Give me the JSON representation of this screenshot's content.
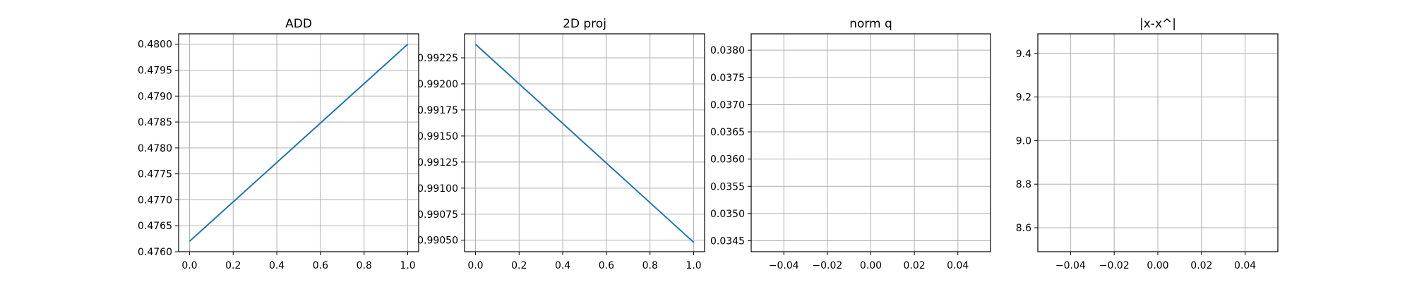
{
  "chart_data": [
    {
      "type": "line",
      "title": "ADD",
      "xlabel": "",
      "ylabel": "",
      "xlim": [
        -0.05,
        1.05
      ],
      "ylim": [
        0.476,
        0.4802
      ],
      "xticks": [
        0.0,
        0.2,
        0.4,
        0.6,
        0.8,
        1.0
      ],
      "xtick_labels": [
        "0.0",
        "0.2",
        "0.4",
        "0.6",
        "0.8",
        "1.0"
      ],
      "yticks": [
        0.476,
        0.4765,
        0.477,
        0.4775,
        0.478,
        0.4785,
        0.479,
        0.4795,
        0.48
      ],
      "ytick_labels": [
        "0.4760",
        "0.4765",
        "0.4770",
        "0.4775",
        "0.4780",
        "0.4785",
        "0.4790",
        "0.4795",
        "0.4800"
      ],
      "grid": true,
      "series": [
        {
          "x": [
            0,
            1
          ],
          "y": [
            0.4762,
            0.48
          ],
          "color": "#1f77b4"
        }
      ]
    },
    {
      "type": "line",
      "title": "2D proj",
      "xlabel": "",
      "ylabel": "",
      "xlim": [
        -0.05,
        1.05
      ],
      "ylim": [
        0.99039,
        0.99248
      ],
      "xticks": [
        0.0,
        0.2,
        0.4,
        0.6,
        0.8,
        1.0
      ],
      "xtick_labels": [
        "0.0",
        "0.2",
        "0.4",
        "0.6",
        "0.8",
        "1.0"
      ],
      "yticks": [
        0.9905,
        0.99075,
        0.991,
        0.99125,
        0.9915,
        0.99175,
        0.992,
        0.99225
      ],
      "ytick_labels": [
        "0.99050",
        "0.99075",
        "0.99100",
        "0.99125",
        "0.99150",
        "0.99175",
        "0.99200",
        "0.99225"
      ],
      "grid": true,
      "series": [
        {
          "x": [
            0,
            1
          ],
          "y": [
            0.99238,
            0.99048
          ],
          "color": "#1f77b4"
        }
      ]
    },
    {
      "type": "line",
      "title": "norm q",
      "xlabel": "",
      "ylabel": "",
      "xlim": [
        -0.055,
        0.055
      ],
      "ylim": [
        0.0343,
        0.0383
      ],
      "xticks": [
        -0.04,
        -0.02,
        0.0,
        0.02,
        0.04
      ],
      "xtick_labels": [
        "−0.04",
        "−0.02",
        "0.00",
        "0.02",
        "0.04"
      ],
      "yticks": [
        0.0345,
        0.035,
        0.0355,
        0.036,
        0.0365,
        0.037,
        0.0375,
        0.038
      ],
      "ytick_labels": [
        "0.0345",
        "0.0350",
        "0.0355",
        "0.0360",
        "0.0365",
        "0.0370",
        "0.0375",
        "0.0380"
      ],
      "grid": true,
      "series": []
    },
    {
      "type": "line",
      "title": "|x-x^|",
      "xlabel": "",
      "ylabel": "",
      "xlim": [
        -0.055,
        0.055
      ],
      "ylim": [
        8.49,
        9.49
      ],
      "xticks": [
        -0.04,
        -0.02,
        0.0,
        0.02,
        0.04
      ],
      "xtick_labels": [
        "−0.04",
        "−0.02",
        "0.00",
        "0.02",
        "0.04"
      ],
      "yticks": [
        8.6,
        8.8,
        9.0,
        9.2,
        9.4
      ],
      "ytick_labels": [
        "8.6",
        "8.8",
        "9.0",
        "9.2",
        "9.4"
      ],
      "grid": true,
      "series": []
    }
  ]
}
